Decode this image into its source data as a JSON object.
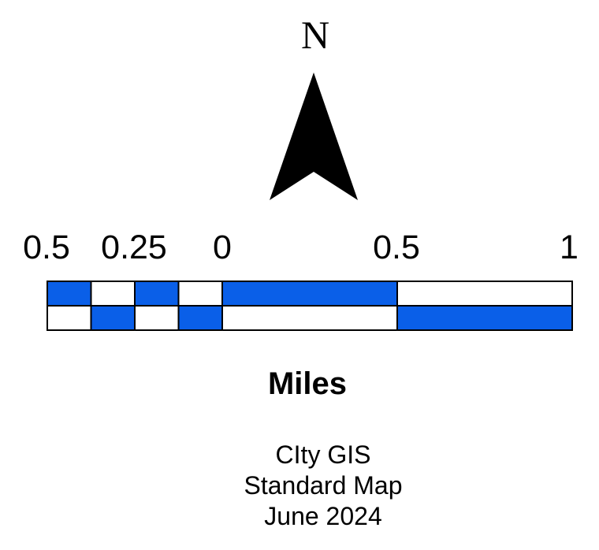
{
  "north_arrow": {
    "letter": "N",
    "icon": "north-arrow-icon",
    "fill_color": "#000000"
  },
  "scale_bar": {
    "labels": [
      "0.5",
      "0.25",
      "0",
      "0.5",
      "1"
    ],
    "units": "Miles",
    "fill_color": "#0a5fe8",
    "alt_color": "#ffffff",
    "outline_color": "#000000"
  },
  "credits": {
    "line1": "CIty GIS",
    "line2": "Standard Map",
    "line3": "June 2024"
  }
}
